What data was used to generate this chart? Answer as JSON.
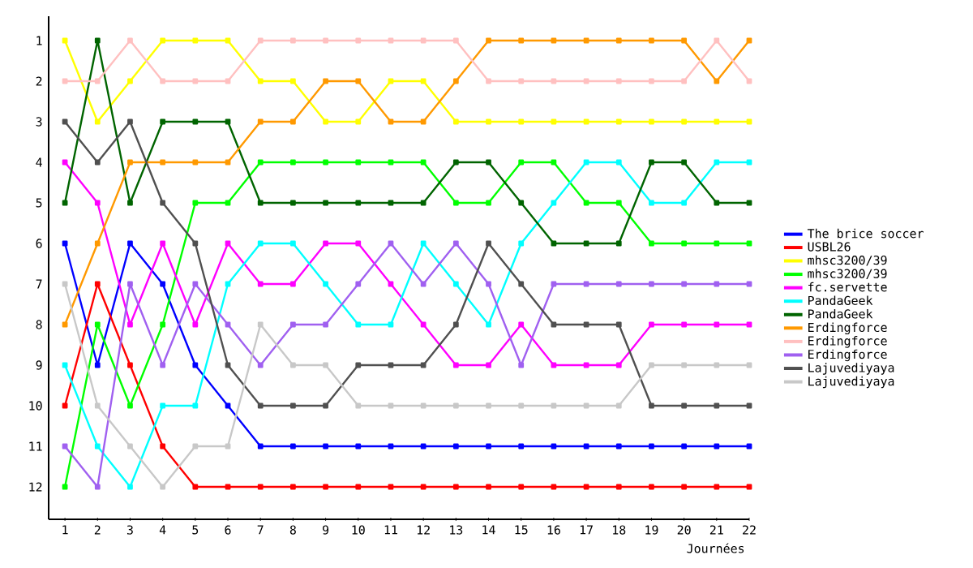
{
  "chart_data": {
    "type": "line",
    "xlabel": "Journées",
    "x": [
      1,
      2,
      3,
      4,
      5,
      6,
      7,
      8,
      9,
      10,
      11,
      12,
      13,
      14,
      15,
      16,
      17,
      18,
      19,
      20,
      21,
      22
    ],
    "xlim": [
      0.5,
      22
    ],
    "xticks": [
      1,
      2,
      3,
      4,
      5,
      6,
      7,
      8,
      9,
      10,
      11,
      12,
      13,
      14,
      15,
      16,
      17,
      18,
      19,
      20,
      21,
      22
    ],
    "ylim": [
      12.8,
      0.4
    ],
    "yticks": [
      1,
      2,
      3,
      4,
      5,
      6,
      7,
      8,
      9,
      10,
      11,
      12
    ],
    "marker": "square",
    "line_style": "solid",
    "legend": "right",
    "series": [
      {
        "name": "The brice soccer",
        "color": "#0000ff",
        "values": [
          6,
          9,
          6,
          7,
          9,
          10,
          11,
          11,
          11,
          11,
          11,
          11,
          11,
          11,
          11,
          11,
          11,
          11,
          11,
          11,
          11,
          11
        ]
      },
      {
        "name": "USBL26",
        "color": "#ff0000",
        "values": [
          10,
          7,
          9,
          11,
          12,
          12,
          12,
          12,
          12,
          12,
          12,
          12,
          12,
          12,
          12,
          12,
          12,
          12,
          12,
          12,
          12,
          12
        ]
      },
      {
        "name": "mhsc3200/39",
        "color": "#ffff00",
        "values": [
          1,
          3,
          2,
          1,
          1,
          1,
          2,
          2,
          3,
          3,
          2,
          2,
          3,
          3,
          3,
          3,
          3,
          3,
          3,
          3,
          3,
          3
        ]
      },
      {
        "name": "mhsc3200/39",
        "color": "#00ff00",
        "values": [
          12,
          8,
          10,
          8,
          5,
          5,
          4,
          4,
          4,
          4,
          4,
          4,
          5,
          5,
          4,
          4,
          5,
          5,
          6,
          6,
          6,
          6
        ]
      },
      {
        "name": "fc.servette",
        "color": "#ff00ff",
        "values": [
          4,
          5,
          8,
          6,
          8,
          6,
          7,
          7,
          6,
          6,
          7,
          8,
          9,
          9,
          8,
          9,
          9,
          9,
          8,
          8,
          8,
          8
        ]
      },
      {
        "name": "PandaGeek",
        "color": "#00ffff",
        "values": [
          9,
          11,
          12,
          10,
          10,
          7,
          6,
          6,
          7,
          8,
          8,
          6,
          7,
          8,
          6,
          5,
          4,
          4,
          5,
          5,
          4,
          4
        ]
      },
      {
        "name": "PandaGeek",
        "color": "#006400",
        "values": [
          5,
          1,
          5,
          3,
          3,
          3,
          5,
          5,
          5,
          5,
          5,
          5,
          4,
          4,
          5,
          6,
          6,
          6,
          4,
          4,
          5,
          5
        ]
      },
      {
        "name": "Erdingforce",
        "color": "#ff9900",
        "values": [
          8,
          6,
          4,
          4,
          4,
          4,
          3,
          3,
          2,
          2,
          3,
          3,
          2,
          1,
          1,
          1,
          1,
          1,
          1,
          1,
          2,
          1
        ]
      },
      {
        "name": "Erdingforce",
        "color": "#ffc0c0",
        "values": [
          2,
          2,
          1,
          2,
          2,
          2,
          1,
          1,
          1,
          1,
          1,
          1,
          1,
          2,
          2,
          2,
          2,
          2,
          2,
          2,
          1,
          2
        ]
      },
      {
        "name": "Erdingforce",
        "color": "#a060f0",
        "values": [
          11,
          12,
          7,
          9,
          7,
          8,
          9,
          8,
          8,
          7,
          6,
          7,
          6,
          7,
          9,
          7,
          7,
          7,
          7,
          7,
          7,
          7
        ]
      },
      {
        "name": "Lajuvediyaya",
        "color": "#505050",
        "values": [
          3,
          4,
          3,
          5,
          6,
          9,
          10,
          10,
          10,
          9,
          9,
          9,
          8,
          6,
          7,
          8,
          8,
          8,
          10,
          10,
          10,
          10
        ]
      },
      {
        "name": "Lajuvediyaya",
        "color": "#c8c8c8",
        "values": [
          7,
          10,
          11,
          12,
          11,
          11,
          8,
          9,
          9,
          10,
          10,
          10,
          10,
          10,
          10,
          10,
          10,
          10,
          9,
          9,
          9,
          9
        ]
      }
    ]
  }
}
